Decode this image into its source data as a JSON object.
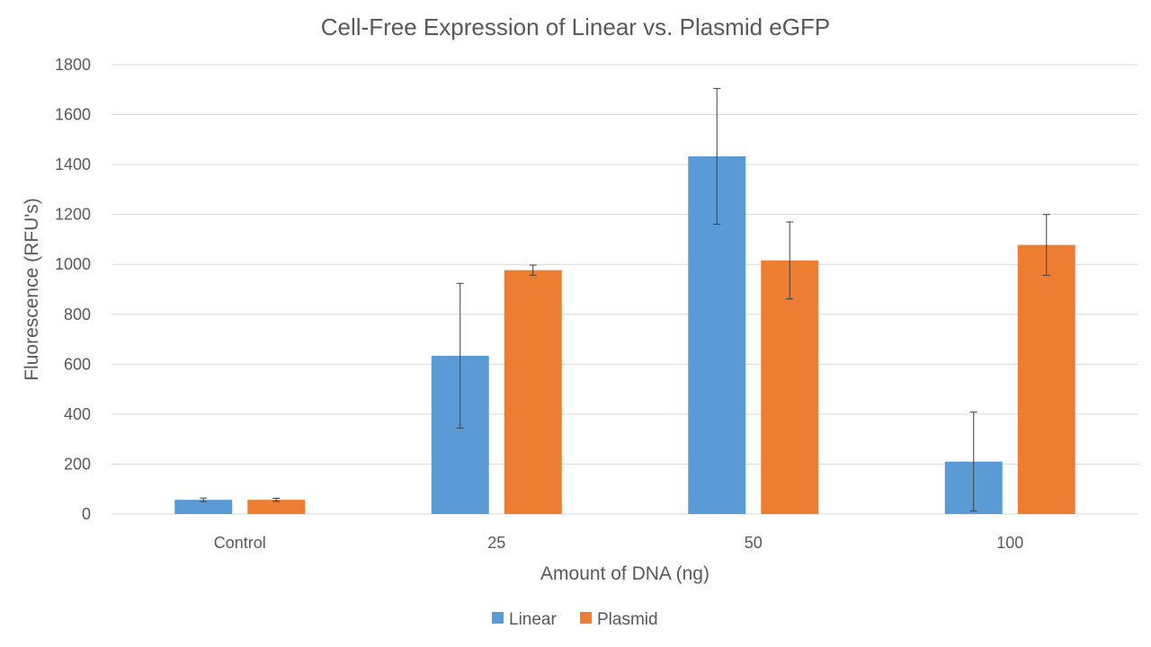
{
  "chart_data": {
    "type": "bar",
    "title": "Cell-Free Expression of Linear vs. Plasmid eGFP",
    "xlabel": "Amount of DNA (ng)",
    "ylabel": "Fluorescence (RFU's)",
    "categories": [
      "Control",
      "25",
      "50",
      "100"
    ],
    "ylim": [
      0,
      1800
    ],
    "yticks": [
      0,
      200,
      400,
      600,
      800,
      1000,
      1200,
      1400,
      1600,
      1800
    ],
    "grid": true,
    "legend_position": "bottom",
    "series": [
      {
        "name": "Linear",
        "color": "#5b9bd5",
        "values": [
          57,
          634,
          1433,
          210
        ],
        "errors": [
          7,
          290,
          272,
          198
        ]
      },
      {
        "name": "Plasmid",
        "color": "#ed7d31",
        "values": [
          57,
          977,
          1016,
          1078
        ],
        "errors": [
          6,
          20,
          154,
          122
        ]
      }
    ]
  }
}
